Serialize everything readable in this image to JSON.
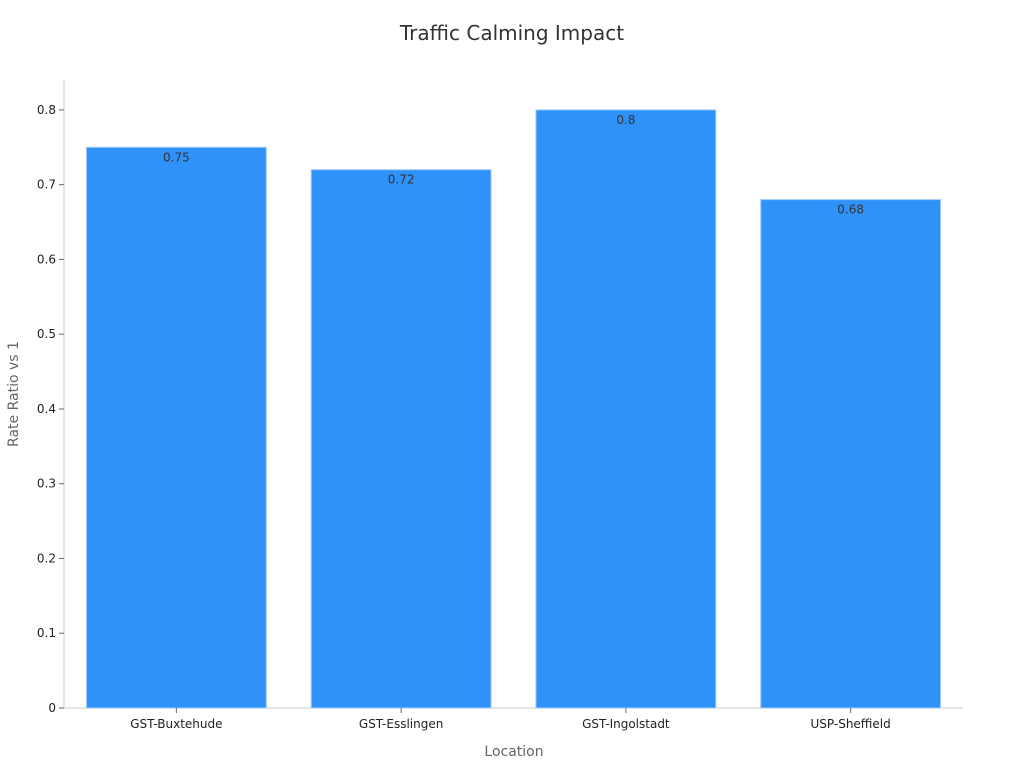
{
  "chart_data": {
    "type": "bar",
    "title": "Traffic Calming Impact",
    "xlabel": "Location",
    "ylabel": "Rate Ratio vs 1",
    "categories": [
      "GST-Buxtehude",
      "GST-Esslingen",
      "GST-Ingolstadt",
      "USP-Sheffield"
    ],
    "values": [
      0.75,
      0.72,
      0.8,
      0.68
    ],
    "data_labels": [
      "0.75",
      "0.72",
      "0.8",
      "0.68"
    ],
    "ylim": [
      0,
      0.84
    ],
    "yticks": [
      0,
      0.1,
      0.2,
      0.3,
      0.4,
      0.5,
      0.6,
      0.7,
      0.8
    ],
    "ytick_labels": [
      "0",
      "0.1",
      "0.2",
      "0.3",
      "0.4",
      "0.5",
      "0.6",
      "0.7",
      "0.8"
    ],
    "grid": false,
    "legend": "none",
    "bar_color": "#2f92f8"
  }
}
